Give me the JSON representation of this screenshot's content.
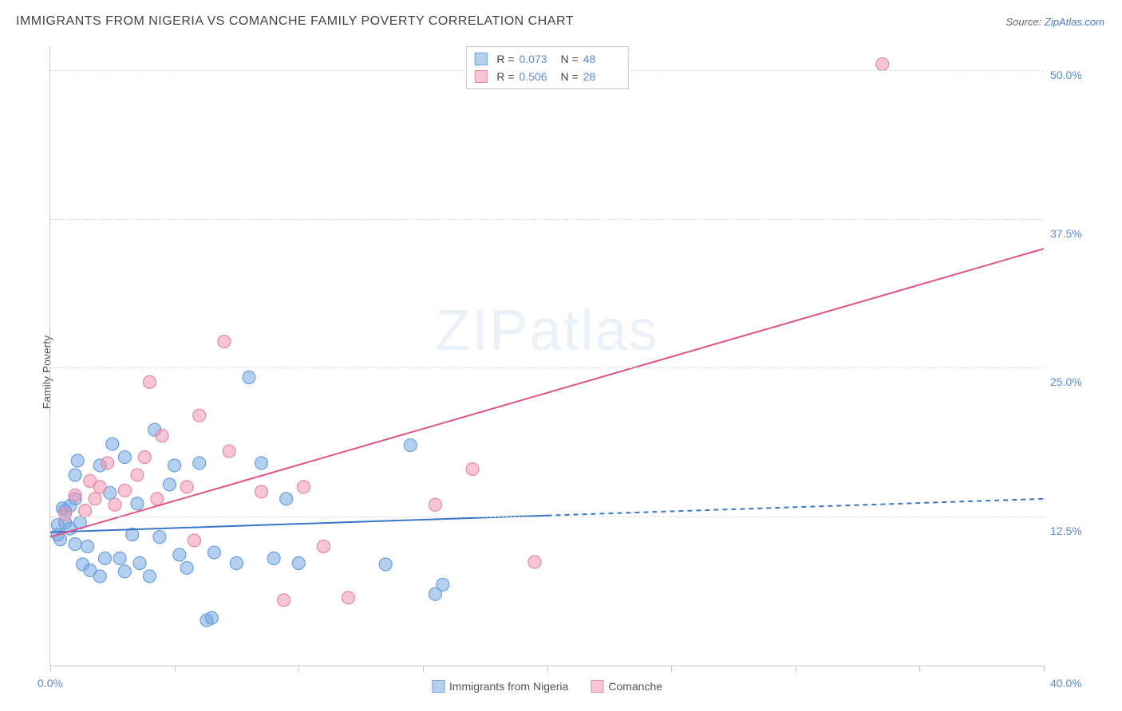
{
  "header": {
    "title": "IMMIGRANTS FROM NIGERIA VS COMANCHE FAMILY POVERTY CORRELATION CHART",
    "source_prefix": "Source: ",
    "source_link": "ZipAtlas.com"
  },
  "chart": {
    "type": "scatter",
    "watermark": "ZIPatlas",
    "ylabel": "Family Poverty",
    "background_color": "#ffffff",
    "grid_color": "#dcdcdc",
    "axis_color": "#c7c7c7",
    "xlim": [
      0,
      40
    ],
    "ylim": [
      0,
      52
    ],
    "xtick_positions": [
      0,
      5,
      10,
      15,
      20,
      25,
      30,
      35,
      40
    ],
    "xtick_labels": {
      "0": "0.0%",
      "40": "40.0%"
    },
    "ytick_positions": [
      12.5,
      25.0,
      37.5,
      50.0
    ],
    "ytick_labels": [
      "12.5%",
      "25.0%",
      "37.5%",
      "50.0%"
    ],
    "y_label_color": "#5a8cd6",
    "x_label_color": "#5a8cd6",
    "label_fontsize": 14,
    "title_fontsize": 16,
    "series": [
      {
        "name": "Immigrants from Nigeria",
        "key": "nigeria",
        "color_fill": "rgba(118,168,228,0.55)",
        "color_stroke": "#6b9fde",
        "marker_radius": 8,
        "trend": {
          "x1": 0,
          "y1": 11.2,
          "x2": 40,
          "y2": 14.0,
          "solid_until_x": 20,
          "color": "#3a76c8",
          "width": 2
        },
        "stats": {
          "R": "0.073",
          "N": "48"
        },
        "points": [
          [
            0.3,
            11.0
          ],
          [
            0.3,
            11.8
          ],
          [
            0.4,
            10.6
          ],
          [
            0.5,
            13.2
          ],
          [
            0.6,
            12.0
          ],
          [
            0.6,
            13.0
          ],
          [
            0.8,
            11.5
          ],
          [
            0.8,
            13.4
          ],
          [
            1.0,
            16.0
          ],
          [
            1.0,
            10.2
          ],
          [
            1.0,
            14.0
          ],
          [
            1.1,
            17.2
          ],
          [
            1.2,
            12.0
          ],
          [
            1.3,
            8.5
          ],
          [
            1.5,
            10.0
          ],
          [
            1.6,
            8.0
          ],
          [
            2.0,
            7.5
          ],
          [
            2.0,
            16.8
          ],
          [
            2.2,
            9.0
          ],
          [
            2.4,
            14.5
          ],
          [
            2.5,
            18.6
          ],
          [
            2.8,
            9.0
          ],
          [
            3.0,
            7.9
          ],
          [
            3.0,
            17.5
          ],
          [
            3.3,
            11.0
          ],
          [
            3.5,
            13.6
          ],
          [
            3.6,
            8.6
          ],
          [
            4.0,
            7.5
          ],
          [
            4.2,
            19.8
          ],
          [
            4.4,
            10.8
          ],
          [
            4.8,
            15.2
          ],
          [
            5.0,
            16.8
          ],
          [
            5.2,
            9.3
          ],
          [
            5.5,
            8.2
          ],
          [
            6.0,
            17.0
          ],
          [
            6.3,
            3.8
          ],
          [
            6.5,
            4.0
          ],
          [
            6.6,
            9.5
          ],
          [
            7.5,
            8.6
          ],
          [
            8.0,
            24.2
          ],
          [
            8.5,
            17.0
          ],
          [
            9.0,
            9.0
          ],
          [
            9.5,
            14.0
          ],
          [
            10.0,
            8.6
          ],
          [
            13.5,
            8.5
          ],
          [
            14.5,
            18.5
          ],
          [
            15.8,
            6.8
          ],
          [
            15.5,
            6.0
          ]
        ]
      },
      {
        "name": "Comanche",
        "key": "comanche",
        "color_fill": "rgba(240,150,175,0.55)",
        "color_stroke": "#e48aa4",
        "marker_radius": 8,
        "trend": {
          "x1": 0,
          "y1": 10.8,
          "x2": 40,
          "y2": 35.0,
          "solid_until_x": 40,
          "color": "#e0557f",
          "width": 2
        },
        "stats": {
          "R": "0.506",
          "N": "28"
        },
        "points": [
          [
            0.6,
            12.7
          ],
          [
            1.0,
            14.3
          ],
          [
            1.4,
            13.0
          ],
          [
            1.6,
            15.5
          ],
          [
            1.8,
            14.0
          ],
          [
            2.0,
            15.0
          ],
          [
            2.3,
            17.0
          ],
          [
            2.6,
            13.5
          ],
          [
            3.0,
            14.7
          ],
          [
            3.5,
            16.0
          ],
          [
            3.8,
            17.5
          ],
          [
            4.0,
            23.8
          ],
          [
            4.3,
            14.0
          ],
          [
            4.5,
            19.3
          ],
          [
            5.5,
            15.0
          ],
          [
            5.8,
            10.5
          ],
          [
            6.0,
            21.0
          ],
          [
            7.0,
            27.2
          ],
          [
            7.2,
            18.0
          ],
          [
            8.5,
            14.6
          ],
          [
            9.4,
            5.5
          ],
          [
            10.2,
            15.0
          ],
          [
            11.0,
            10.0
          ],
          [
            12.0,
            5.7
          ],
          [
            15.5,
            13.5
          ],
          [
            17.0,
            16.5
          ],
          [
            19.5,
            8.7
          ],
          [
            33.5,
            50.5
          ]
        ]
      }
    ],
    "bottom_legend": [
      {
        "label": "Immigrants from Nigeria",
        "fill": "rgba(118,168,228,0.55)",
        "stroke": "#6b9fde"
      },
      {
        "label": "Comanche",
        "fill": "rgba(240,150,175,0.55)",
        "stroke": "#e48aa4"
      }
    ],
    "top_legend_labels": {
      "R": "R =",
      "N": "N ="
    }
  }
}
